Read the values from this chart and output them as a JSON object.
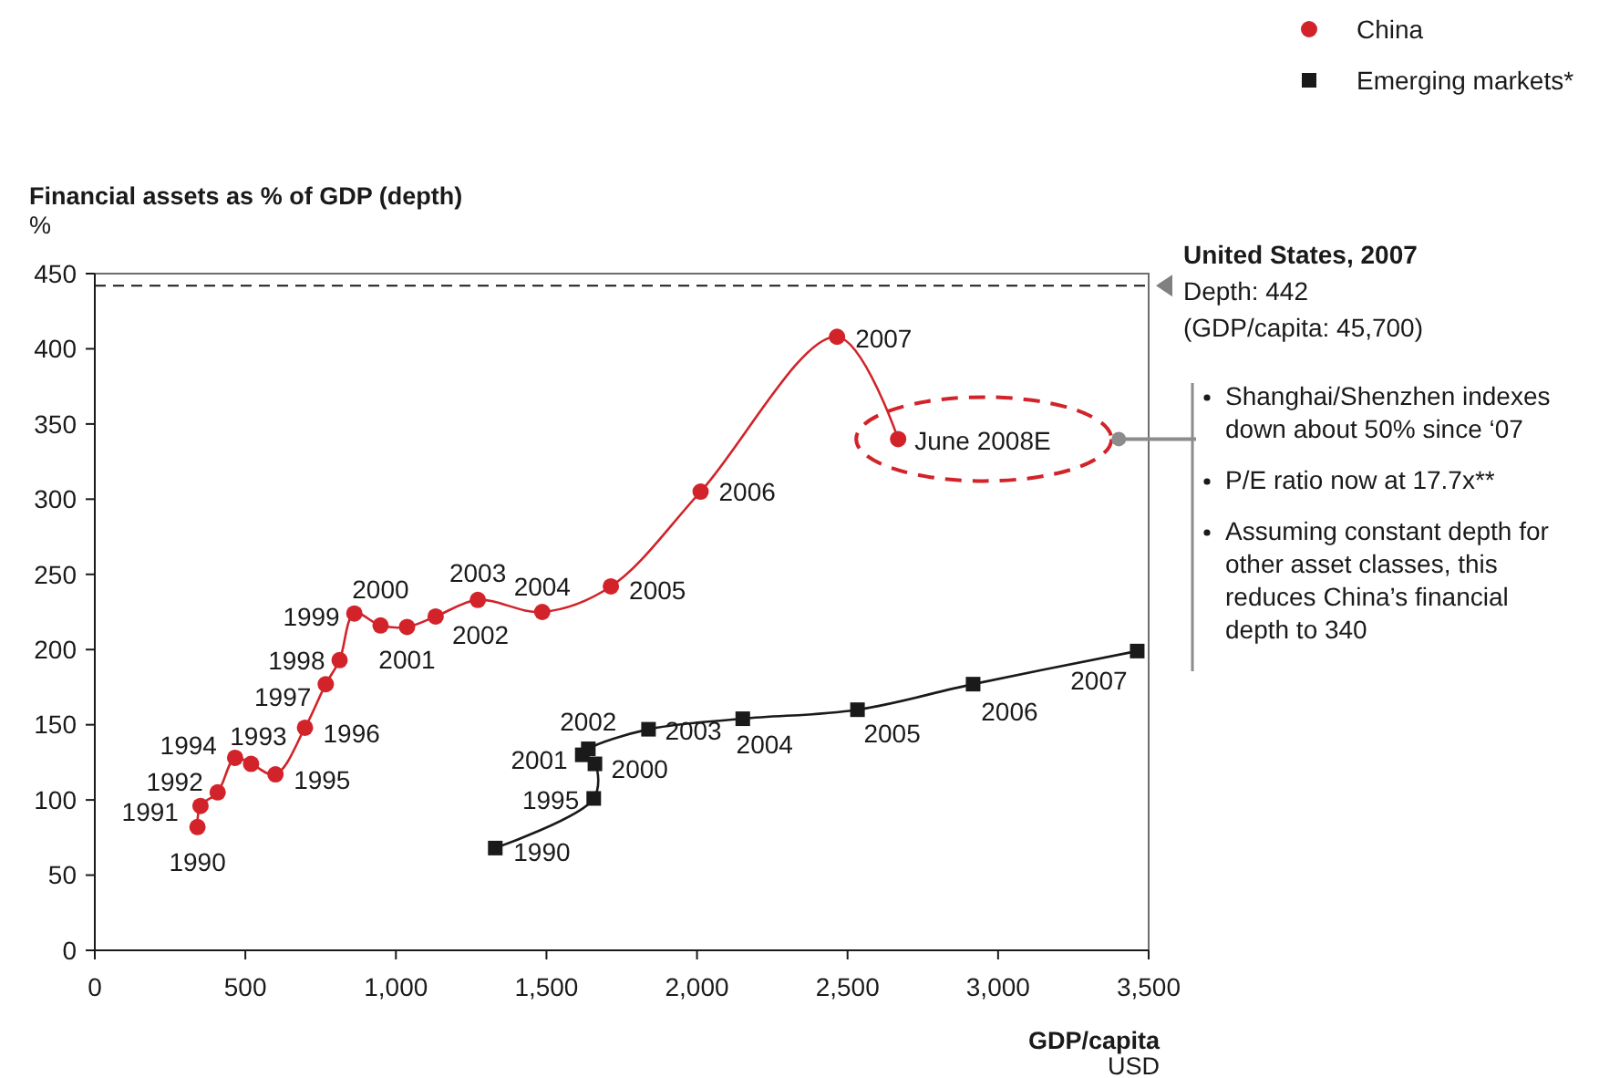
{
  "chart_data": {
    "type": "line",
    "ylabel": "Financial assets as % of GDP (depth)\n%",
    "xlabel": "GDP/capita\nUSD",
    "xlim": [
      0,
      3500
    ],
    "xticks": [
      0,
      500,
      {
        "value": 1000,
        "label": "1,000"
      },
      {
        "value": 1500,
        "label": "1,500"
      },
      {
        "value": 2000,
        "label": "2,000"
      },
      {
        "value": 2500,
        "label": "2,500"
      },
      {
        "value": 3000,
        "label": "3,000"
      },
      {
        "value": 3500,
        "label": "3,500"
      }
    ],
    "ylim": [
      0,
      450
    ],
    "yticks": [
      0,
      50,
      100,
      150,
      200,
      250,
      300,
      350,
      400,
      450
    ],
    "grid": false,
    "legend": "top right",
    "line_style": "solid",
    "series": [
      {
        "name": "China",
        "color": "#d2232a",
        "marker": "circle",
        "x": [
          341,
          351,
          408,
          466,
          519,
          600,
          698,
          767,
          813,
          862,
          949,
          1037,
          1132,
          1272,
          1486,
          1714,
          2012,
          2465,
          2668
        ],
        "values": [
          82,
          96,
          105,
          128,
          124,
          117,
          148,
          177,
          193,
          224,
          216,
          215,
          222,
          233,
          225,
          242,
          305,
          408,
          340
        ]
      },
      {
        "name": "Emerging markets*",
        "color": "#1a1a1a",
        "marker": "square",
        "x": [
          1330,
          1657,
          1661,
          1619,
          1639,
          1839,
          2152,
          2533,
          2917,
          3462
        ],
        "values": [
          68,
          101,
          124,
          130,
          134,
          147,
          154,
          160,
          177,
          199
        ]
      }
    ],
    "ref_lines": [
      {
        "axis": "y",
        "value": 442,
        "label": "United States, 2007\nDepth: 442\n(GDP/capita: 45,700)",
        "color": "#1a1a1a",
        "line_style": "dashed"
      }
    ],
    "annotations": [
      {
        "text": "1990",
        "x": 341,
        "y": 82
      },
      {
        "text": "1991",
        "x": 351,
        "y": 96
      },
      {
        "text": "1992",
        "x": 408,
        "y": 105
      },
      {
        "text": "1994",
        "x": 466,
        "y": 128
      },
      {
        "text": "1993",
        "x": 519,
        "y": 124
      },
      {
        "text": "1995",
        "x": 600,
        "y": 117
      },
      {
        "text": "1996",
        "x": 698,
        "y": 148
      },
      {
        "text": "1997",
        "x": 767,
        "y": 177
      },
      {
        "text": "1998",
        "x": 813,
        "y": 193
      },
      {
        "text": "1999",
        "x": 862,
        "y": 224
      },
      {
        "text": "2000",
        "x": 949,
        "y": 216
      },
      {
        "text": "2001",
        "x": 1037,
        "y": 215
      },
      {
        "text": "2002",
        "x": 1132,
        "y": 222
      },
      {
        "text": "2003",
        "x": 1272,
        "y": 233
      },
      {
        "text": "2004",
        "x": 1486,
        "y": 225
      },
      {
        "text": "2005",
        "x": 1714,
        "y": 242
      },
      {
        "text": "2006",
        "x": 2012,
        "y": 305
      },
      {
        "text": "2007",
        "x": 2465,
        "y": 408
      },
      {
        "text": "June 2008E",
        "x": 2668,
        "y": 340
      },
      {
        "text": "1990",
        "x": 1330,
        "y": 68
      },
      {
        "text": "1995",
        "x": 1657,
        "y": 101
      },
      {
        "text": "2000",
        "x": 1661,
        "y": 124
      },
      {
        "text": "2001",
        "x": 1619,
        "y": 130
      },
      {
        "text": "2002",
        "x": 1639,
        "y": 134
      },
      {
        "text": "2003",
        "x": 1839,
        "y": 147
      },
      {
        "text": "2004",
        "x": 2152,
        "y": 154
      },
      {
        "text": "2005",
        "x": 2533,
        "y": 160
      },
      {
        "text": "2006",
        "x": 2917,
        "y": 177
      },
      {
        "text": "2007",
        "x": 3462,
        "y": 199
      },
      "Shanghai/Shenzhen indexes down about 50% since ‘07",
      "P/E ratio now at 17.7x**",
      "Assuming constant depth for other asset classes, this reduces China’s financial depth to 340"
    ]
  }
}
